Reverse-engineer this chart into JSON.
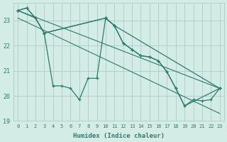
{
  "xlabel": "Humidex (Indice chaleur)",
  "background_color": "#d4ece6",
  "grid_color": "#b2d0ca",
  "line_color": "#2d7a6e",
  "xlim": [
    -0.5,
    23.5
  ],
  "ylim": [
    19.0,
    23.7
  ],
  "yticks": [
    19,
    20,
    21,
    22,
    23
  ],
  "xticks": [
    0,
    1,
    2,
    3,
    4,
    5,
    6,
    7,
    8,
    9,
    10,
    11,
    12,
    13,
    14,
    15,
    16,
    17,
    18,
    19,
    20,
    21,
    22,
    23
  ],
  "x_main": [
    0,
    1,
    2,
    3,
    4,
    5,
    6,
    7,
    8,
    9,
    10,
    11,
    12,
    13,
    14,
    15,
    16,
    17,
    18,
    19,
    20,
    21,
    22,
    23
  ],
  "y_main": [
    23.4,
    23.5,
    23.1,
    22.5,
    20.4,
    20.4,
    20.3,
    19.85,
    20.7,
    20.7,
    23.1,
    22.8,
    22.1,
    21.85,
    21.6,
    21.55,
    21.4,
    20.95,
    20.3,
    19.6,
    19.85,
    19.8,
    19.85,
    20.3
  ],
  "x_upper_env": [
    0,
    1,
    2,
    3,
    10,
    11,
    23
  ],
  "y_upper_env": [
    23.4,
    23.5,
    23.1,
    22.5,
    23.1,
    22.8,
    20.3
  ],
  "x_lower_env": [
    0,
    2,
    3,
    10,
    11,
    12,
    13,
    14,
    15,
    16,
    17,
    18,
    19,
    23
  ],
  "y_lower_env": [
    23.4,
    23.1,
    22.5,
    23.1,
    22.8,
    22.1,
    21.85,
    21.6,
    21.55,
    21.4,
    20.95,
    20.3,
    19.6,
    20.3
  ],
  "trend_line1_x": [
    0,
    23
  ],
  "trend_line1_y": [
    23.4,
    20.3
  ],
  "trend_line2_x": [
    0,
    23
  ],
  "trend_line2_y": [
    23.1,
    19.3
  ]
}
